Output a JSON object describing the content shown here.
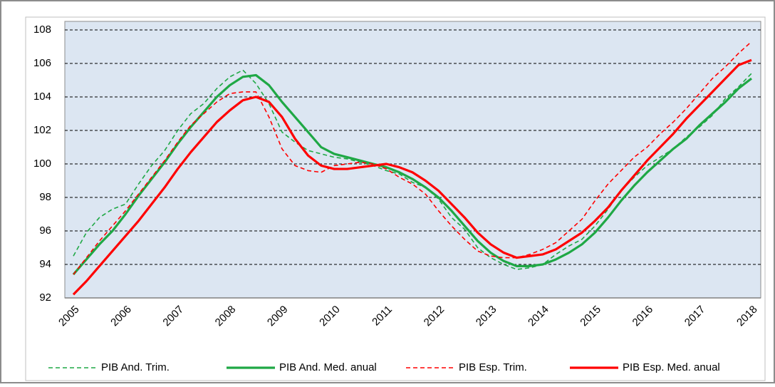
{
  "chart_data": {
    "type": "line",
    "categories": [
      "2005",
      null,
      null,
      null,
      "2006",
      null,
      null,
      null,
      "2007",
      null,
      null,
      null,
      "2008",
      null,
      null,
      null,
      "2009",
      null,
      null,
      null,
      "2010",
      null,
      null,
      null,
      "2011",
      null,
      null,
      null,
      "2012",
      null,
      null,
      null,
      "2013",
      null,
      null,
      null,
      "2014",
      null,
      null,
      null,
      "2015",
      null,
      null,
      null,
      "2016",
      null,
      null,
      null,
      "2017",
      null,
      null,
      null,
      "2018"
    ],
    "series": [
      {
        "name": "PIB And. Trim.",
        "color": "#1fa845",
        "dashed": true,
        "values": [
          94.5,
          95.9,
          96.8,
          97.3,
          97.6,
          98.8,
          99.9,
          100.8,
          102.0,
          103.0,
          103.6,
          104.5,
          105.2,
          105.6,
          104.8,
          103.6,
          101.9,
          101.3,
          100.8,
          100.6,
          100.4,
          100.3,
          100.1,
          99.9,
          99.6,
          99.4,
          98.9,
          98.6,
          97.9,
          96.8,
          96.1,
          95.0,
          94.4,
          94.0,
          93.7,
          93.8,
          94.0,
          94.6,
          95.1,
          95.5,
          96.3,
          97.3,
          98.4,
          99.2,
          99.9,
          100.4,
          100.9,
          101.6,
          102.2,
          102.9,
          103.9,
          104.6,
          105.4
        ]
      },
      {
        "name": "PIB And. Med. anual",
        "color": "#1fa845",
        "dashed": false,
        "values": [
          93.4,
          94.3,
          95.2,
          96.0,
          97.0,
          98.1,
          99.1,
          100.1,
          101.2,
          102.2,
          103.1,
          104.0,
          104.7,
          105.2,
          105.3,
          104.7,
          103.7,
          102.8,
          101.9,
          101.0,
          100.6,
          100.4,
          100.2,
          100.0,
          99.8,
          99.5,
          99.1,
          98.6,
          98.0,
          97.2,
          96.3,
          95.4,
          94.7,
          94.2,
          93.9,
          93.9,
          94.0,
          94.3,
          94.7,
          95.2,
          95.9,
          96.8,
          97.8,
          98.7,
          99.5,
          100.2,
          100.9,
          101.5,
          102.3,
          103.0,
          103.7,
          104.5,
          105.1
        ]
      },
      {
        "name": "PIB Esp. Trim.",
        "color": "#ff0000",
        "dashed": true,
        "values": [
          93.4,
          94.4,
          95.4,
          96.3,
          97.2,
          98.2,
          99.2,
          100.2,
          101.3,
          102.3,
          103.0,
          103.7,
          104.2,
          104.3,
          104.3,
          102.8,
          100.9,
          99.9,
          99.6,
          99.5,
          99.9,
          100.0,
          100.1,
          100.0,
          99.7,
          99.2,
          98.8,
          98.2,
          97.2,
          96.3,
          95.5,
          94.8,
          94.5,
          94.4,
          94.4,
          94.6,
          94.9,
          95.3,
          96.0,
          96.7,
          97.8,
          98.8,
          99.6,
          100.4,
          101.0,
          101.8,
          102.5,
          103.3,
          104.2,
          105.1,
          105.8,
          106.6,
          107.3
        ]
      },
      {
        "name": "PIB Esp. Med. anual",
        "color": "#ff0000",
        "dashed": false,
        "values": [
          92.2,
          93.0,
          93.9,
          94.8,
          95.7,
          96.6,
          97.6,
          98.6,
          99.7,
          100.7,
          101.6,
          102.5,
          103.2,
          103.8,
          104.0,
          103.7,
          102.8,
          101.5,
          100.5,
          99.9,
          99.7,
          99.7,
          99.8,
          99.9,
          100.0,
          99.8,
          99.5,
          99.0,
          98.4,
          97.6,
          96.8,
          95.9,
          95.2,
          94.7,
          94.4,
          94.5,
          94.6,
          94.9,
          95.4,
          95.9,
          96.6,
          97.4,
          98.4,
          99.3,
          100.2,
          101.0,
          101.8,
          102.7,
          103.5,
          104.3,
          105.1,
          105.9,
          106.2
        ]
      }
    ],
    "ylim": [
      92,
      108
    ],
    "yticks": [
      92,
      94,
      96,
      98,
      100,
      102,
      104,
      106,
      108
    ],
    "grid": true,
    "legend": "bottom",
    "plot_background": "#dce6f2"
  }
}
